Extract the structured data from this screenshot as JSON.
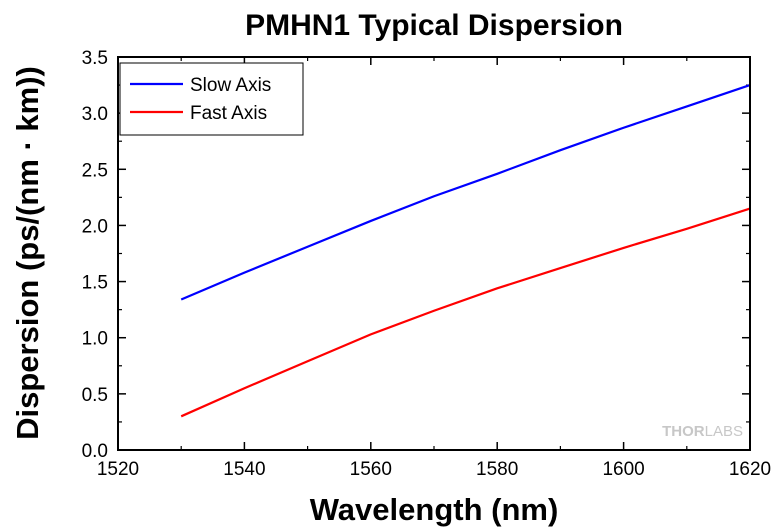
{
  "chart_data": {
    "type": "line",
    "title": "PMHN1 Typical Dispersion",
    "xlabel": "Wavelength (nm)",
    "ylabel": "Dispersion (ps/(nm · km))",
    "xlim": [
      1520,
      1620
    ],
    "ylim": [
      0.0,
      3.5
    ],
    "x_ticks": [
      "1520",
      "1540",
      "1560",
      "1580",
      "1600",
      "1620"
    ],
    "y_ticks": [
      "0.0",
      "0.5",
      "1.0",
      "1.5",
      "2.0",
      "2.5",
      "3.0",
      "3.5"
    ],
    "grid": false,
    "legend_position": "top-left",
    "series": [
      {
        "name": "Slow Axis",
        "color": "#0000ff",
        "x": [
          1530,
          1540,
          1550,
          1560,
          1570,
          1580,
          1590,
          1600,
          1610,
          1620
        ],
        "y": [
          1.34,
          1.58,
          1.81,
          2.04,
          2.26,
          2.46,
          2.67,
          2.87,
          3.06,
          3.25
        ]
      },
      {
        "name": "Fast Axis",
        "color": "#ff0000",
        "x": [
          1530,
          1540,
          1550,
          1560,
          1570,
          1580,
          1590,
          1600,
          1610,
          1620
        ],
        "y": [
          0.3,
          0.55,
          0.79,
          1.03,
          1.24,
          1.44,
          1.62,
          1.8,
          1.97,
          2.15
        ]
      }
    ]
  },
  "watermark": {
    "prefix": "THOR",
    "suffix": "LABS"
  }
}
